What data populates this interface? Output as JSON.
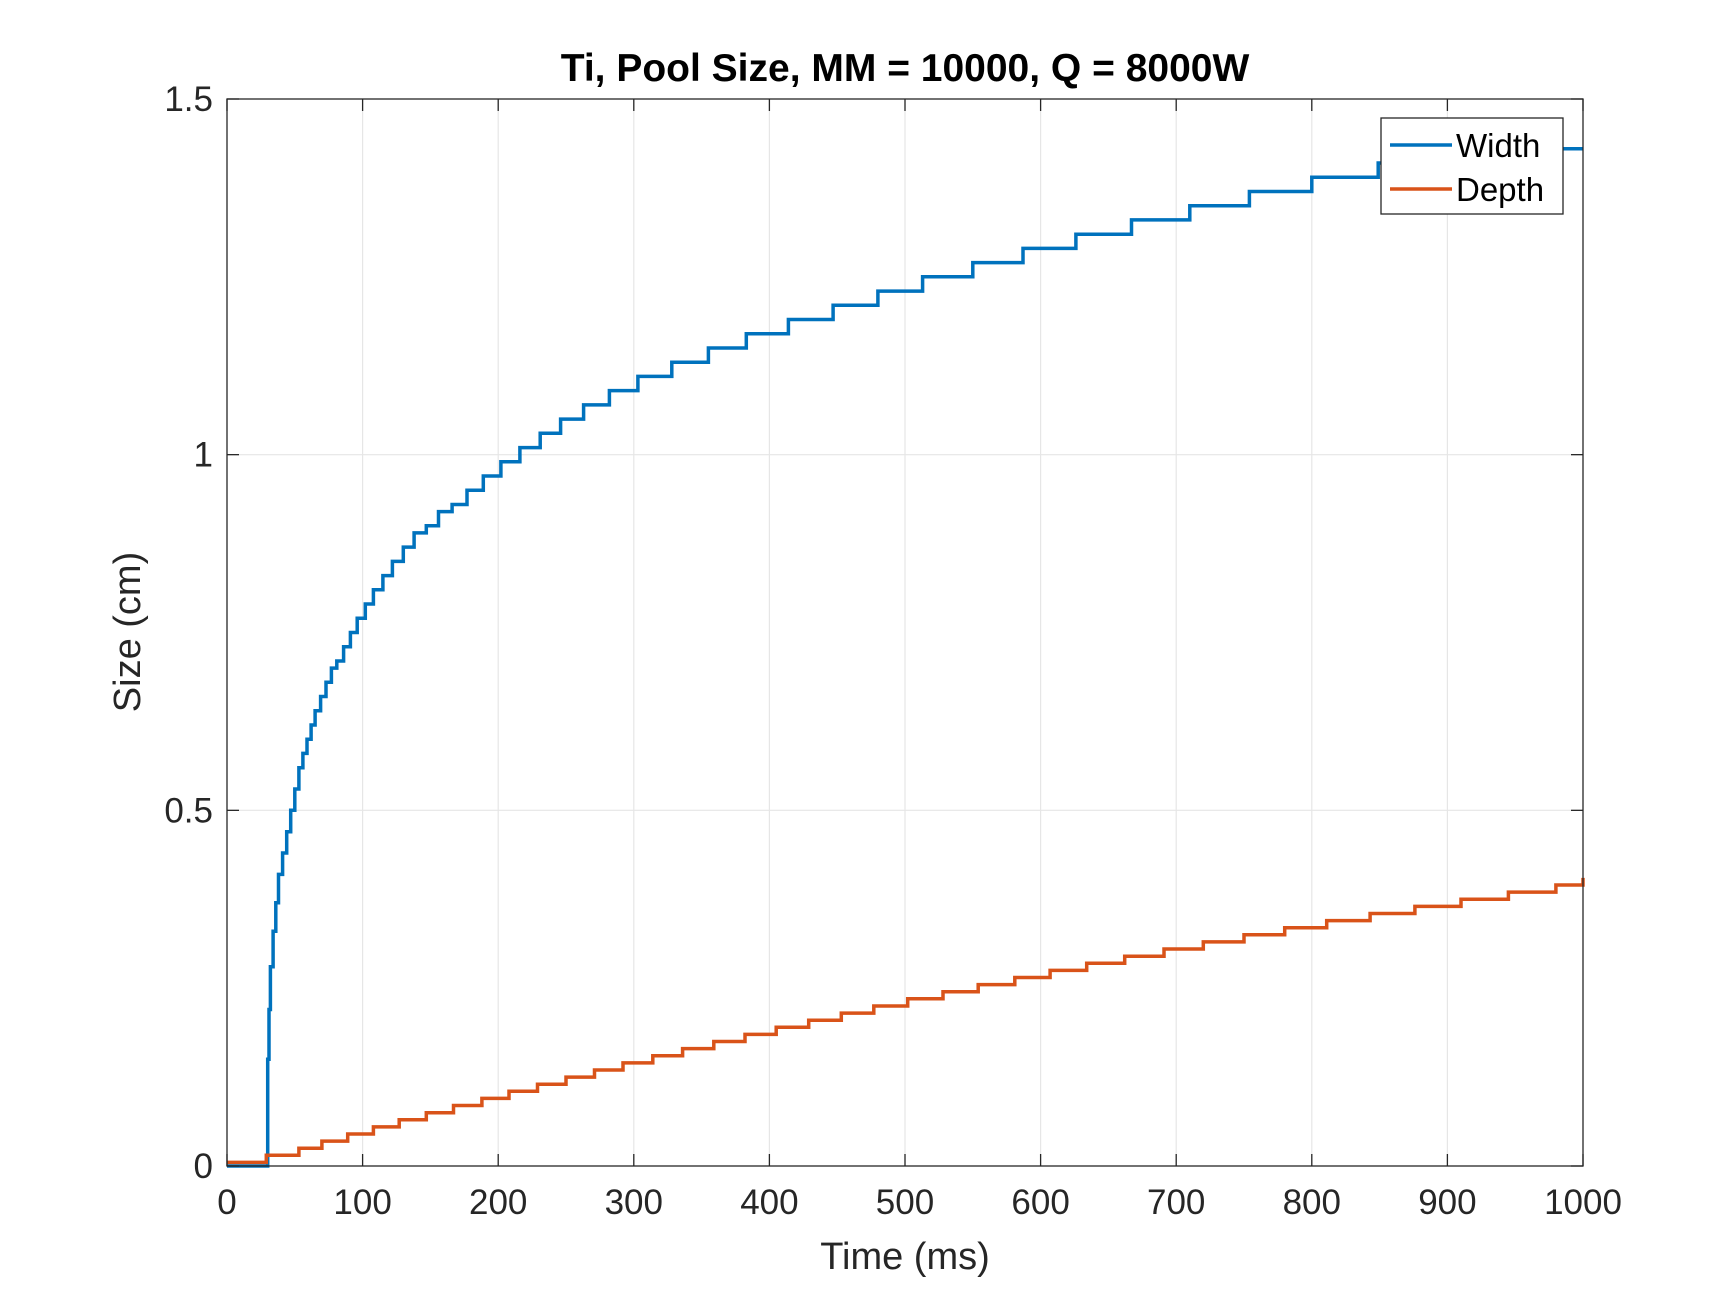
{
  "chart_data": {
    "type": "line",
    "title": "Ti, Pool Size, MM = 10000, Q = 8000W",
    "xlabel": "Time (ms)",
    "ylabel": "Size (cm)",
    "xlim": [
      0,
      1000
    ],
    "ylim": [
      0,
      1.5
    ],
    "xticks": [
      0,
      100,
      200,
      300,
      400,
      500,
      600,
      700,
      800,
      900,
      1000
    ],
    "xtick_labels": [
      "0",
      "100",
      "200",
      "300",
      "400",
      "500",
      "600",
      "700",
      "800",
      "900",
      "1000"
    ],
    "yticks": [
      0,
      0.5,
      1,
      1.5
    ],
    "ytick_labels": [
      "0",
      "0.5",
      "1",
      "1.5"
    ],
    "grid": true,
    "legend_position": "top-right",
    "series": [
      {
        "name": "Width",
        "color": "#0072BD",
        "step": true,
        "x": [
          0,
          29,
          30,
          31,
          32,
          34,
          36,
          38,
          41,
          44,
          47,
          50,
          53,
          56,
          59,
          62,
          65,
          69,
          73,
          77,
          81,
          86,
          91,
          96,
          102,
          108,
          115,
          122,
          130,
          138,
          147,
          156,
          166,
          177,
          189,
          202,
          216,
          231,
          246,
          263,
          282,
          303,
          328,
          355,
          383,
          414,
          447,
          480,
          513,
          550,
          587,
          626,
          667,
          710,
          754,
          800,
          849,
          900,
          951,
          1000
        ],
        "y": [
          0,
          0,
          0.15,
          0.22,
          0.28,
          0.33,
          0.37,
          0.41,
          0.44,
          0.47,
          0.5,
          0.53,
          0.56,
          0.58,
          0.6,
          0.62,
          0.64,
          0.66,
          0.68,
          0.7,
          0.71,
          0.73,
          0.75,
          0.77,
          0.79,
          0.81,
          0.83,
          0.85,
          0.87,
          0.89,
          0.9,
          0.92,
          0.93,
          0.95,
          0.97,
          0.99,
          1.01,
          1.03,
          1.05,
          1.07,
          1.09,
          1.11,
          1.13,
          1.15,
          1.17,
          1.19,
          1.21,
          1.23,
          1.25,
          1.27,
          1.29,
          1.31,
          1.33,
          1.35,
          1.37,
          1.39,
          1.41,
          1.43,
          1.43,
          1.43
        ]
      },
      {
        "name": "Depth",
        "color": "#D95319",
        "step": true,
        "x": [
          0,
          29,
          53,
          70,
          89,
          108,
          127,
          147,
          167,
          188,
          208,
          229,
          250,
          271,
          292,
          314,
          336,
          359,
          382,
          405,
          429,
          453,
          477,
          502,
          528,
          554,
          581,
          607,
          634,
          662,
          691,
          720,
          750,
          780,
          811,
          843,
          876,
          910,
          945,
          980,
          1000
        ],
        "y": [
          0.005,
          0.015,
          0.025,
          0.035,
          0.045,
          0.055,
          0.065,
          0.075,
          0.085,
          0.095,
          0.105,
          0.115,
          0.125,
          0.135,
          0.145,
          0.155,
          0.165,
          0.175,
          0.185,
          0.195,
          0.205,
          0.215,
          0.225,
          0.235,
          0.245,
          0.255,
          0.265,
          0.275,
          0.285,
          0.295,
          0.305,
          0.315,
          0.325,
          0.335,
          0.345,
          0.355,
          0.365,
          0.375,
          0.385,
          0.395,
          0.405
        ]
      }
    ]
  }
}
